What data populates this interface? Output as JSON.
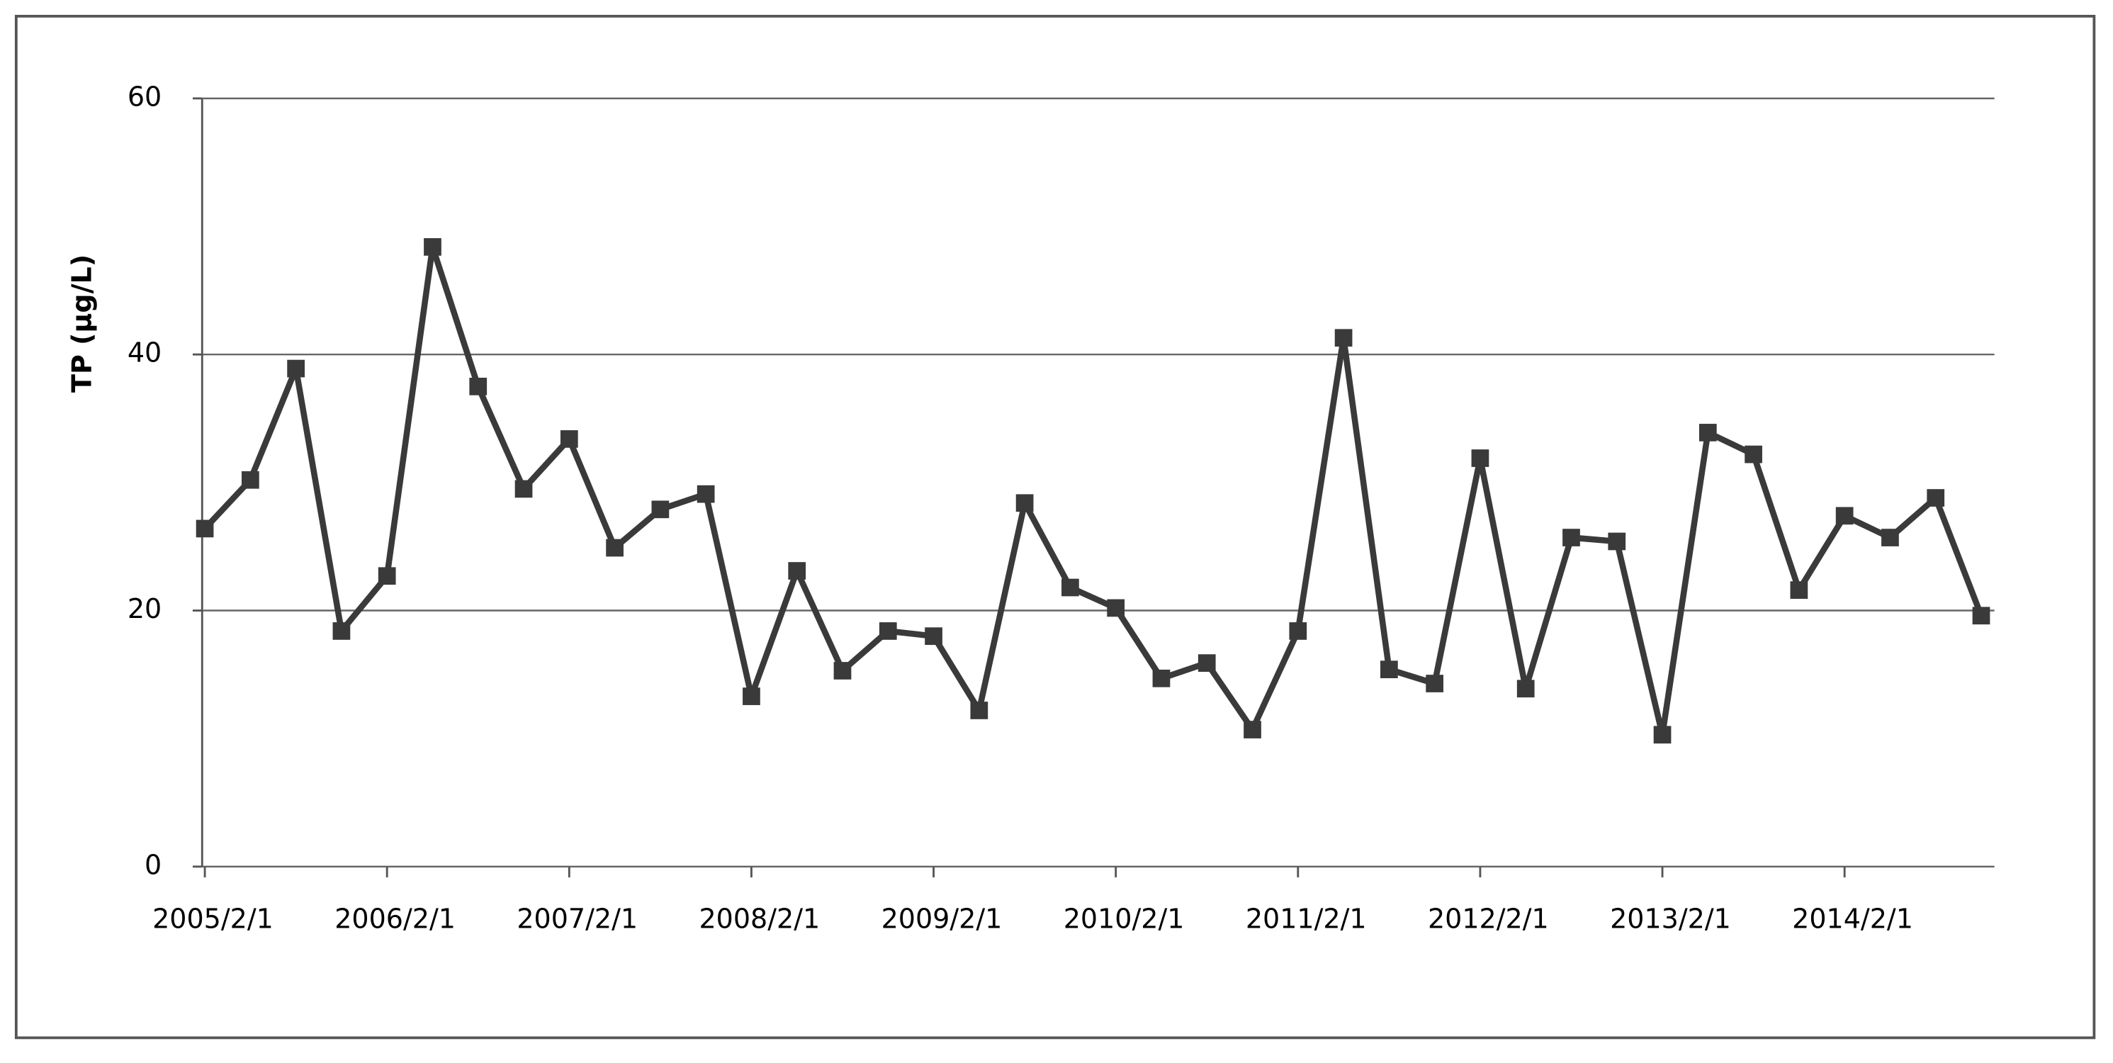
{
  "chart_data": {
    "type": "line",
    "y_label": "TP  (μg/L)",
    "categories": [
      "2005/2/1",
      null,
      null,
      null,
      "2006/2/1",
      null,
      null,
      null,
      "2007/2/1",
      null,
      null,
      null,
      "2008/2/1",
      null,
      null,
      null,
      "2009/2/1",
      null,
      null,
      null,
      "2010/2/1",
      null,
      null,
      null,
      "2011/2/1",
      null,
      null,
      null,
      "2012/2/1",
      null,
      null,
      null,
      "2013/2/1",
      null,
      null,
      null,
      "2014/2/1",
      null,
      null,
      null
    ],
    "series": [
      {
        "name": "TP",
        "color": "#3a3a3a",
        "values": [
          26.4,
          30.2,
          38.9,
          18.4,
          22.7,
          48.4,
          37.5,
          29.5,
          33.4,
          24.9,
          27.9,
          29.1,
          13.3,
          23.1,
          15.3,
          18.4,
          18.0,
          12.2,
          28.4,
          21.8,
          20.2,
          14.7,
          15.9,
          10.7,
          18.4,
          41.3,
          15.4,
          14.3,
          31.9,
          13.9,
          25.7,
          25.4,
          10.3,
          33.9,
          32.2,
          21.6,
          27.4,
          25.7,
          28.8,
          19.6
        ]
      }
    ],
    "ylim": [
      0,
      60
    ],
    "yticks": [
      0,
      20,
      40,
      60
    ],
    "grid": true
  }
}
